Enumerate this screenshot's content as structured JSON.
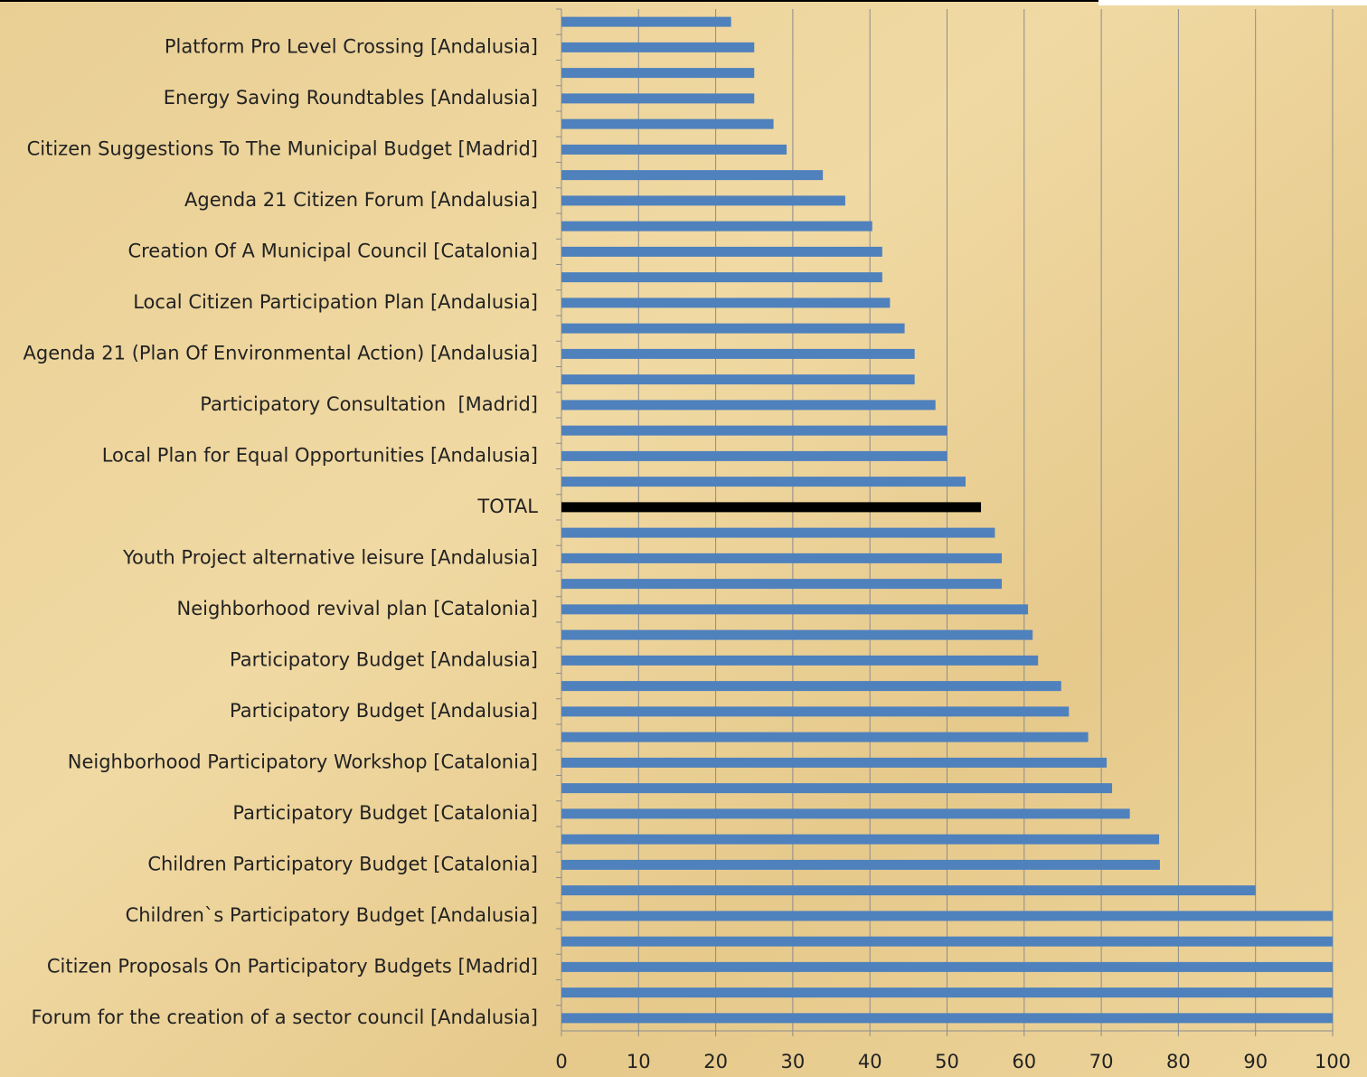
{
  "chart_data": {
    "type": "barh",
    "categories": [
      null,
      "Platform Pro Level Crossing [Andalusia]",
      null,
      "Energy Saving Roundtables [Andalusia]",
      null,
      "Citizen Suggestions To The Municipal Budget [Madrid]",
      null,
      "Agenda 21 Citizen Forum [Andalusia]",
      null,
      "Creation Of A Municipal Council [Catalonia]",
      null,
      "Local Citizen Participation Plan [Andalusia]",
      null,
      "Agenda 21 (Plan Of Environmental Action) [Andalusia]",
      null,
      "Participatory Consultation  [Madrid]",
      null,
      "Local Plan for Equal Opportunities [Andalusia]",
      null,
      "TOTAL",
      null,
      "Youth Project alternative leisure [Andalusia]",
      null,
      "Neighborhood revival plan [Catalonia]",
      null,
      "Participatory Budget [Andalusia]",
      null,
      "Participatory Budget [Andalusia]",
      null,
      "Neighborhood Participatory Workshop [Catalonia]",
      null,
      "Participatory Budget [Catalonia]",
      null,
      "Children Participatory Budget [Catalonia]",
      null,
      "Children`s Participatory Budget [Andalusia]",
      null,
      "Citizen Proposals On Participatory Budgets [Madrid]",
      null,
      "Forum for the creation of a sector council [Andalusia]"
    ],
    "values": [
      22,
      25,
      25,
      25,
      27.5,
      29.2,
      33.9,
      36.8,
      40.3,
      41.6,
      41.6,
      42.6,
      44.5,
      45.8,
      45.8,
      48.5,
      50,
      50,
      52.4,
      54.4,
      56.2,
      57.1,
      57.1,
      60.5,
      61.1,
      61.8,
      64.8,
      65.8,
      68.3,
      70.7,
      71.4,
      73.7,
      77.5,
      77.6,
      90,
      100,
      100,
      100,
      100,
      100
    ],
    "colors": [
      "#4f81bd",
      "#4f81bd",
      "#4f81bd",
      "#4f81bd",
      "#4f81bd",
      "#4f81bd",
      "#4f81bd",
      "#4f81bd",
      "#4f81bd",
      "#4f81bd",
      "#4f81bd",
      "#4f81bd",
      "#4f81bd",
      "#4f81bd",
      "#4f81bd",
      "#4f81bd",
      "#4f81bd",
      "#4f81bd",
      "#4f81bd",
      "#000000",
      "#4f81bd",
      "#4f81bd",
      "#4f81bd",
      "#4f81bd",
      "#4f81bd",
      "#4f81bd",
      "#4f81bd",
      "#4f81bd",
      "#4f81bd",
      "#4f81bd",
      "#4f81bd",
      "#4f81bd",
      "#4f81bd",
      "#4f81bd",
      "#4f81bd",
      "#4f81bd",
      "#4f81bd",
      "#4f81bd",
      "#4f81bd",
      "#4f81bd"
    ],
    "xlim": [
      0,
      100
    ],
    "xticks": [
      0,
      10,
      20,
      30,
      40,
      50,
      60,
      70,
      80,
      90,
      100
    ],
    "grid": true
  }
}
